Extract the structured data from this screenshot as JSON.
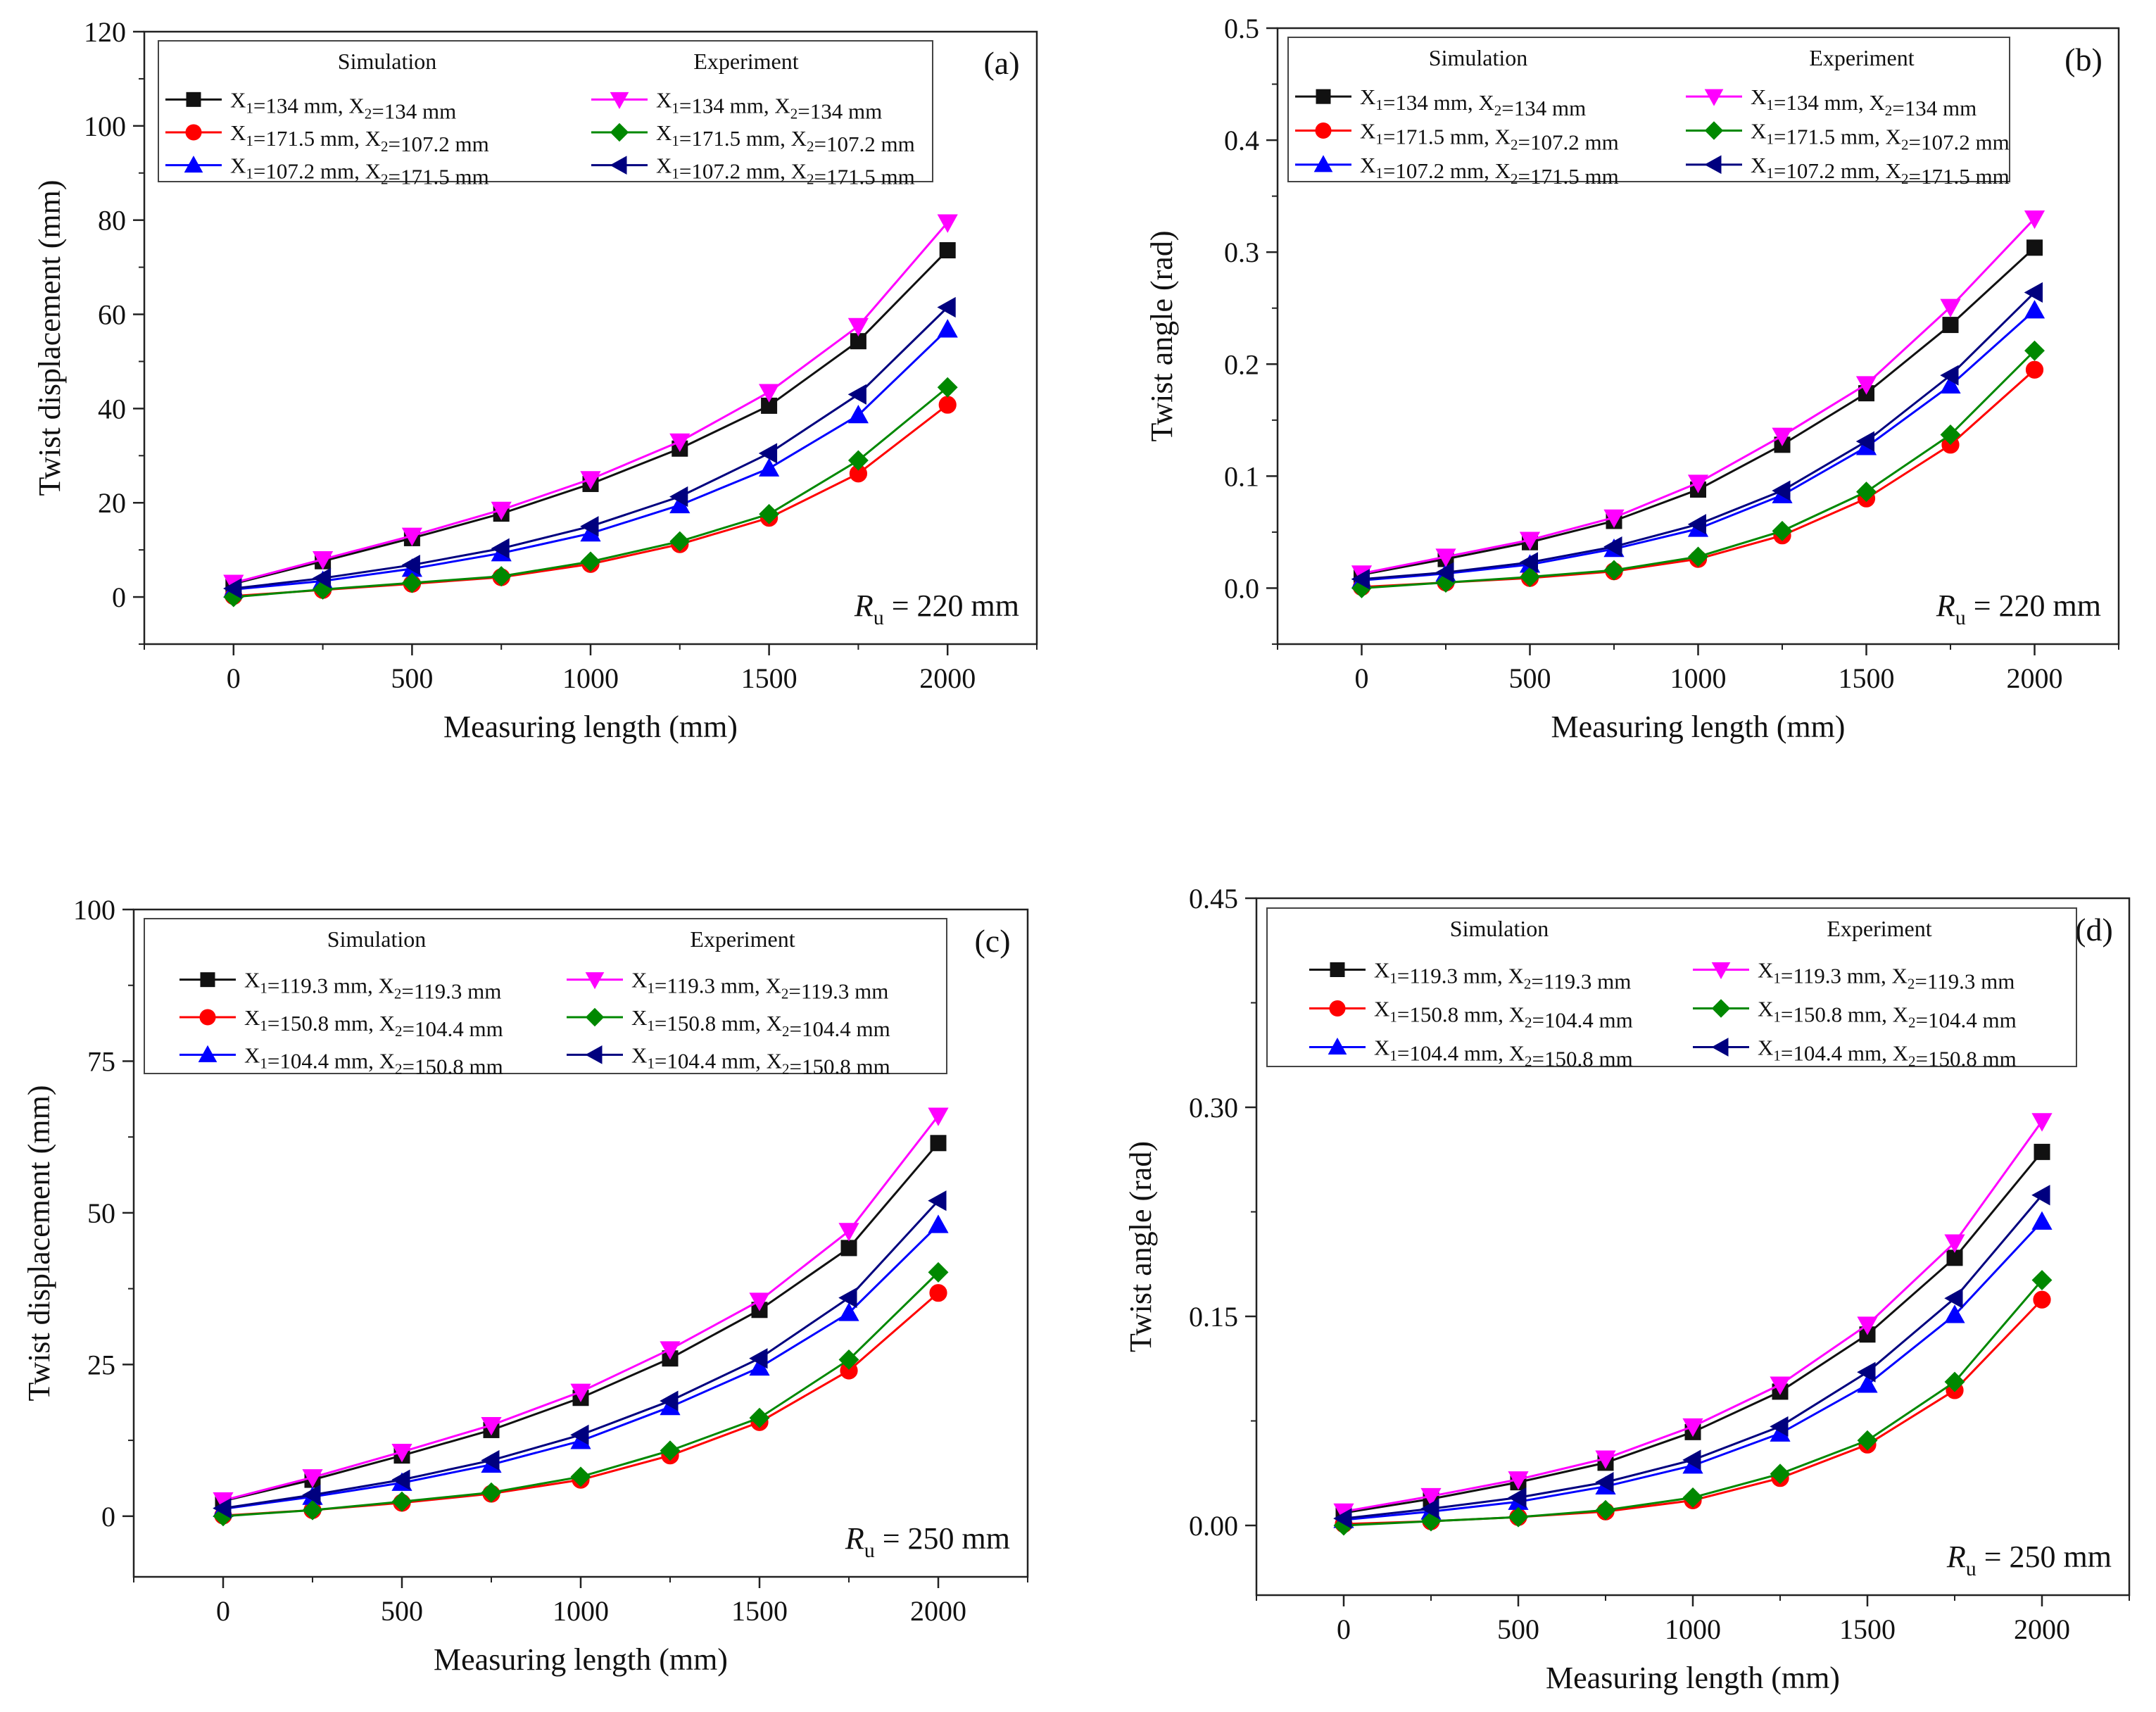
{
  "figure": {
    "legend_headers": {
      "simulation": "Simulation",
      "experiment": "Experiment"
    },
    "xlabel": "Measuring length (mm)",
    "colors": {
      "black": "#111111",
      "red": "#ff0000",
      "blue": "#0000ff",
      "magenta": "#ff00ff",
      "green": "#008800",
      "navy": "#00007f"
    }
  },
  "chart_data": [
    {
      "type": "line",
      "panel": "(a)",
      "title": "",
      "xlabel": "Measuring length (mm)",
      "ylabel": "Twist displacement (mm)",
      "xlim": [
        -250,
        2250
      ],
      "ylim": [
        -10,
        120
      ],
      "xticks": [
        0,
        500,
        1000,
        1500,
        2000
      ],
      "yticks": [
        0,
        20,
        40,
        60,
        80,
        100,
        120
      ],
      "annotation": {
        "r": "R",
        "sub": "u",
        "rest": " = 220 mm"
      },
      "x": [
        0,
        250,
        500,
        750,
        1000,
        1250,
        1500,
        1750,
        2000
      ],
      "series": [
        {
          "name": "sim-1",
          "group": "Simulation",
          "label_x1": "=134 mm,",
          "label_x2": "=134 mm",
          "color": "#111111",
          "marker": "square",
          "values": [
            2.8,
            7.6,
            12.5,
            17.7,
            24.0,
            31.5,
            40.6,
            54.3,
            73.6
          ]
        },
        {
          "name": "sim-2",
          "group": "Simulation",
          "label_x1": "=171.5 mm,",
          "label_x2": "=107.2 mm",
          "color": "#ff0000",
          "marker": "circle",
          "values": [
            0.2,
            1.5,
            2.8,
            4.2,
            7.0,
            11.2,
            16.8,
            26.2,
            40.8
          ]
        },
        {
          "name": "sim-3",
          "group": "Simulation",
          "label_x1": "=107.2 mm,",
          "label_x2": "=171.5 mm",
          "color": "#0000ff",
          "marker": "triangle-up",
          "values": [
            1.6,
            3.4,
            6.0,
            9.3,
            13.5,
            19.5,
            27.3,
            38.6,
            56.8
          ]
        },
        {
          "name": "exp-1",
          "group": "Experiment",
          "label_x1": "=134 mm,",
          "label_x2": "=134 mm",
          "color": "#ff00ff",
          "marker": "triangle-down",
          "values": [
            3.0,
            8.0,
            13.0,
            18.5,
            25.0,
            33.0,
            43.5,
            57.5,
            79.5
          ]
        },
        {
          "name": "exp-2",
          "group": "Experiment",
          "label_x1": "=171.5 mm,",
          "label_x2": "=107.2 mm",
          "color": "#008800",
          "marker": "diamond",
          "values": [
            0.0,
            1.6,
            3.0,
            4.4,
            7.5,
            11.8,
            17.6,
            29.0,
            44.5
          ]
        },
        {
          "name": "exp-3",
          "group": "Experiment",
          "label_x1": "=107.2 mm,",
          "label_x2": "=171.5 mm",
          "color": "#00007f",
          "marker": "triangle-left",
          "values": [
            1.8,
            4.0,
            6.8,
            10.3,
            15.0,
            21.3,
            30.5,
            43.0,
            61.5
          ]
        }
      ]
    },
    {
      "type": "line",
      "panel": "(b)",
      "title": "",
      "xlabel": "Measuring length (mm)",
      "ylabel": "Twist angle (rad)",
      "xlim": [
        -250,
        2250
      ],
      "ylim": [
        -0.05,
        0.5
      ],
      "xticks": [
        0,
        500,
        1000,
        1500,
        2000
      ],
      "yticks": [
        0.0,
        0.1,
        0.2,
        0.3,
        0.4,
        0.5
      ],
      "annotation": {
        "r": "R",
        "sub": "u",
        "rest": " = 220 mm"
      },
      "x": [
        0,
        250,
        500,
        750,
        1000,
        1250,
        1500,
        1750,
        2000
      ],
      "series": [
        {
          "name": "sim-1",
          "group": "Simulation",
          "label_x1": "=134 mm,",
          "label_x2": "=134 mm",
          "color": "#111111",
          "marker": "square",
          "values": [
            0.012,
            0.026,
            0.041,
            0.06,
            0.088,
            0.128,
            0.174,
            0.235,
            0.304
          ]
        },
        {
          "name": "sim-2",
          "group": "Simulation",
          "label_x1": "=171.5 mm,",
          "label_x2": "=107.2 mm",
          "color": "#ff0000",
          "marker": "circle",
          "values": [
            0.001,
            0.005,
            0.009,
            0.015,
            0.026,
            0.047,
            0.08,
            0.128,
            0.195
          ]
        },
        {
          "name": "sim-3",
          "group": "Simulation",
          "label_x1": "=107.2 mm,",
          "label_x2": "=171.5 mm",
          "color": "#0000ff",
          "marker": "triangle-up",
          "values": [
            0.007,
            0.013,
            0.021,
            0.035,
            0.053,
            0.083,
            0.126,
            0.181,
            0.248
          ]
        },
        {
          "name": "exp-1",
          "group": "Experiment",
          "label_x1": "=134 mm,",
          "label_x2": "=134 mm",
          "color": "#ff00ff",
          "marker": "triangle-down",
          "values": [
            0.013,
            0.028,
            0.043,
            0.063,
            0.094,
            0.136,
            0.182,
            0.251,
            0.33
          ]
        },
        {
          "name": "exp-2",
          "group": "Experiment",
          "label_x1": "=171.5 mm,",
          "label_x2": "=107.2 mm",
          "color": "#008800",
          "marker": "diamond",
          "values": [
            0.0,
            0.005,
            0.01,
            0.016,
            0.028,
            0.051,
            0.086,
            0.137,
            0.212
          ]
        },
        {
          "name": "exp-3",
          "group": "Experiment",
          "label_x1": "=107.2 mm,",
          "label_x2": "=171.5 mm",
          "color": "#00007f",
          "marker": "triangle-left",
          "values": [
            0.008,
            0.014,
            0.023,
            0.037,
            0.057,
            0.087,
            0.131,
            0.19,
            0.264
          ]
        }
      ]
    },
    {
      "type": "line",
      "panel": "(c)",
      "title": "",
      "xlabel": "Measuring length (mm)",
      "ylabel": "Twist displacement (mm)",
      "xlim": [
        -250,
        2250
      ],
      "ylim": [
        -10,
        100
      ],
      "xticks": [
        0,
        500,
        1000,
        1500,
        2000
      ],
      "yticks": [
        0,
        25,
        50,
        75,
        100
      ],
      "annotation": {
        "r": "R",
        "sub": "u",
        "rest": " = 250 mm"
      },
      "x": [
        0,
        250,
        500,
        750,
        1000,
        1250,
        1500,
        1750,
        2000
      ],
      "series": [
        {
          "name": "sim-1",
          "group": "Simulation",
          "label_x1": "=119.3 mm,",
          "label_x2": "=119.3 mm",
          "color": "#111111",
          "marker": "square",
          "values": [
            2.5,
            6.0,
            10.0,
            14.2,
            19.5,
            26.0,
            34.0,
            44.2,
            61.5
          ]
        },
        {
          "name": "sim-2",
          "group": "Simulation",
          "label_x1": "=150.8 mm,",
          "label_x2": "=104.4 mm",
          "color": "#ff0000",
          "marker": "circle",
          "values": [
            0.1,
            1.0,
            2.2,
            3.7,
            6.0,
            10.0,
            15.5,
            24.0,
            36.8
          ]
        },
        {
          "name": "sim-3",
          "group": "Simulation",
          "label_x1": "=104.4 mm,",
          "label_x2": "=150.8 mm",
          "color": "#0000ff",
          "marker": "triangle-up",
          "values": [
            1.2,
            3.2,
            5.5,
            8.5,
            12.4,
            18.0,
            24.5,
            33.5,
            48.0
          ]
        },
        {
          "name": "exp-1",
          "group": "Experiment",
          "label_x1": "=119.3 mm,",
          "label_x2": "=119.3 mm",
          "color": "#ff00ff",
          "marker": "triangle-down",
          "values": [
            2.6,
            6.4,
            10.6,
            15.0,
            20.5,
            27.5,
            35.5,
            47.0,
            66.0
          ]
        },
        {
          "name": "exp-2",
          "group": "Experiment",
          "label_x1": "=150.8 mm,",
          "label_x2": "=104.4 mm",
          "color": "#008800",
          "marker": "diamond",
          "values": [
            0.0,
            1.0,
            2.4,
            3.9,
            6.5,
            10.8,
            16.2,
            25.8,
            40.2
          ]
        },
        {
          "name": "exp-3",
          "group": "Experiment",
          "label_x1": "=104.4 mm,",
          "label_x2": "=150.8 mm",
          "color": "#00007f",
          "marker": "triangle-left",
          "values": [
            1.3,
            3.5,
            6.0,
            9.2,
            13.4,
            19.0,
            26.0,
            36.0,
            52.0
          ]
        }
      ]
    },
    {
      "type": "line",
      "panel": "(d)",
      "title": "",
      "xlabel": "Measuring length (mm)",
      "ylabel": "Twist angle (rad)",
      "xlim": [
        -250,
        2250
      ],
      "ylim": [
        -0.05,
        0.45
      ],
      "xticks": [
        0,
        500,
        1000,
        1500,
        2000
      ],
      "yticks": [
        0.0,
        0.15,
        0.3,
        0.45
      ],
      "ytick_labels": [
        "0.00",
        "0.15",
        "0.30",
        "0.45"
      ],
      "annotation": {
        "r": "R",
        "sub": "u",
        "rest": " = 250 mm"
      },
      "x": [
        0,
        250,
        500,
        750,
        1000,
        1250,
        1500,
        1750,
        2000
      ],
      "series": [
        {
          "name": "sim-1",
          "group": "Simulation",
          "label_x1": "=119.3 mm,",
          "label_x2": "=119.3 mm",
          "color": "#111111",
          "marker": "square",
          "values": [
            0.009,
            0.019,
            0.031,
            0.045,
            0.067,
            0.096,
            0.137,
            0.192,
            0.268
          ]
        },
        {
          "name": "sim-2",
          "group": "Simulation",
          "label_x1": "=150.8 mm,",
          "label_x2": "=104.4 mm",
          "color": "#ff0000",
          "marker": "circle",
          "values": [
            0.001,
            0.003,
            0.006,
            0.01,
            0.018,
            0.034,
            0.058,
            0.097,
            0.162
          ]
        },
        {
          "name": "sim-3",
          "group": "Simulation",
          "label_x1": "=104.4 mm,",
          "label_x2": "=150.8 mm",
          "color": "#0000ff",
          "marker": "triangle-up",
          "values": [
            0.004,
            0.01,
            0.017,
            0.028,
            0.043,
            0.066,
            0.101,
            0.151,
            0.218
          ]
        },
        {
          "name": "exp-1",
          "group": "Experiment",
          "label_x1": "=119.3 mm,",
          "label_x2": "=119.3 mm",
          "color": "#ff00ff",
          "marker": "triangle-down",
          "values": [
            0.01,
            0.021,
            0.033,
            0.048,
            0.071,
            0.101,
            0.144,
            0.203,
            0.29
          ]
        },
        {
          "name": "exp-2",
          "group": "Experiment",
          "label_x1": "=150.8 mm,",
          "label_x2": "=104.4 mm",
          "color": "#008800",
          "marker": "diamond",
          "values": [
            0.0,
            0.003,
            0.006,
            0.011,
            0.02,
            0.037,
            0.061,
            0.103,
            0.176
          ]
        },
        {
          "name": "exp-3",
          "group": "Experiment",
          "label_x1": "=104.4 mm,",
          "label_x2": "=150.8 mm",
          "color": "#00007f",
          "marker": "triangle-left",
          "values": [
            0.005,
            0.012,
            0.02,
            0.031,
            0.047,
            0.071,
            0.11,
            0.163,
            0.237
          ]
        }
      ]
    }
  ]
}
